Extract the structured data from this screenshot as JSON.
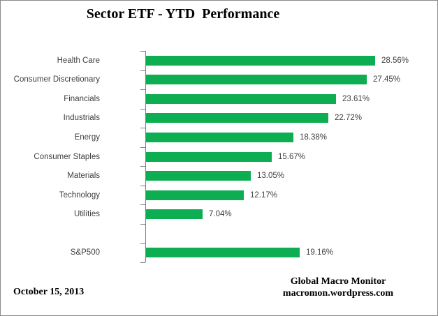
{
  "title": "Sector ETF - YTD  Performance",
  "footer": {
    "date": "October 15, 2013",
    "brand_line1": "Global Macro Monitor",
    "brand_line2": "macromon.wordpress.com"
  },
  "colors": {
    "bar": "#0dad52",
    "axis": "#808080",
    "text": "#3f3f3f"
  },
  "chart_data": {
    "type": "bar",
    "orientation": "horizontal",
    "title": "Sector ETF - YTD  Performance",
    "categories": [
      "Health Care",
      "Consumer Discretionary",
      "Financials",
      "Industrials",
      "Energy",
      "Consumer Staples",
      "Materials",
      "Technology",
      "Utilities",
      "",
      "S&P500"
    ],
    "values": [
      28.56,
      27.45,
      23.61,
      22.72,
      18.38,
      15.67,
      13.05,
      12.17,
      7.04,
      null,
      19.16
    ],
    "value_labels": [
      "28.56%",
      "27.45%",
      "23.61%",
      "22.72%",
      "18.38%",
      "15.67%",
      "13.05%",
      "12.17%",
      "7.04%",
      "",
      "19.16%"
    ],
    "xlim": [
      0,
      30
    ],
    "grid": false,
    "legend": false,
    "data_labels": "outside-end",
    "axis_ticks": "category-boundaries"
  }
}
